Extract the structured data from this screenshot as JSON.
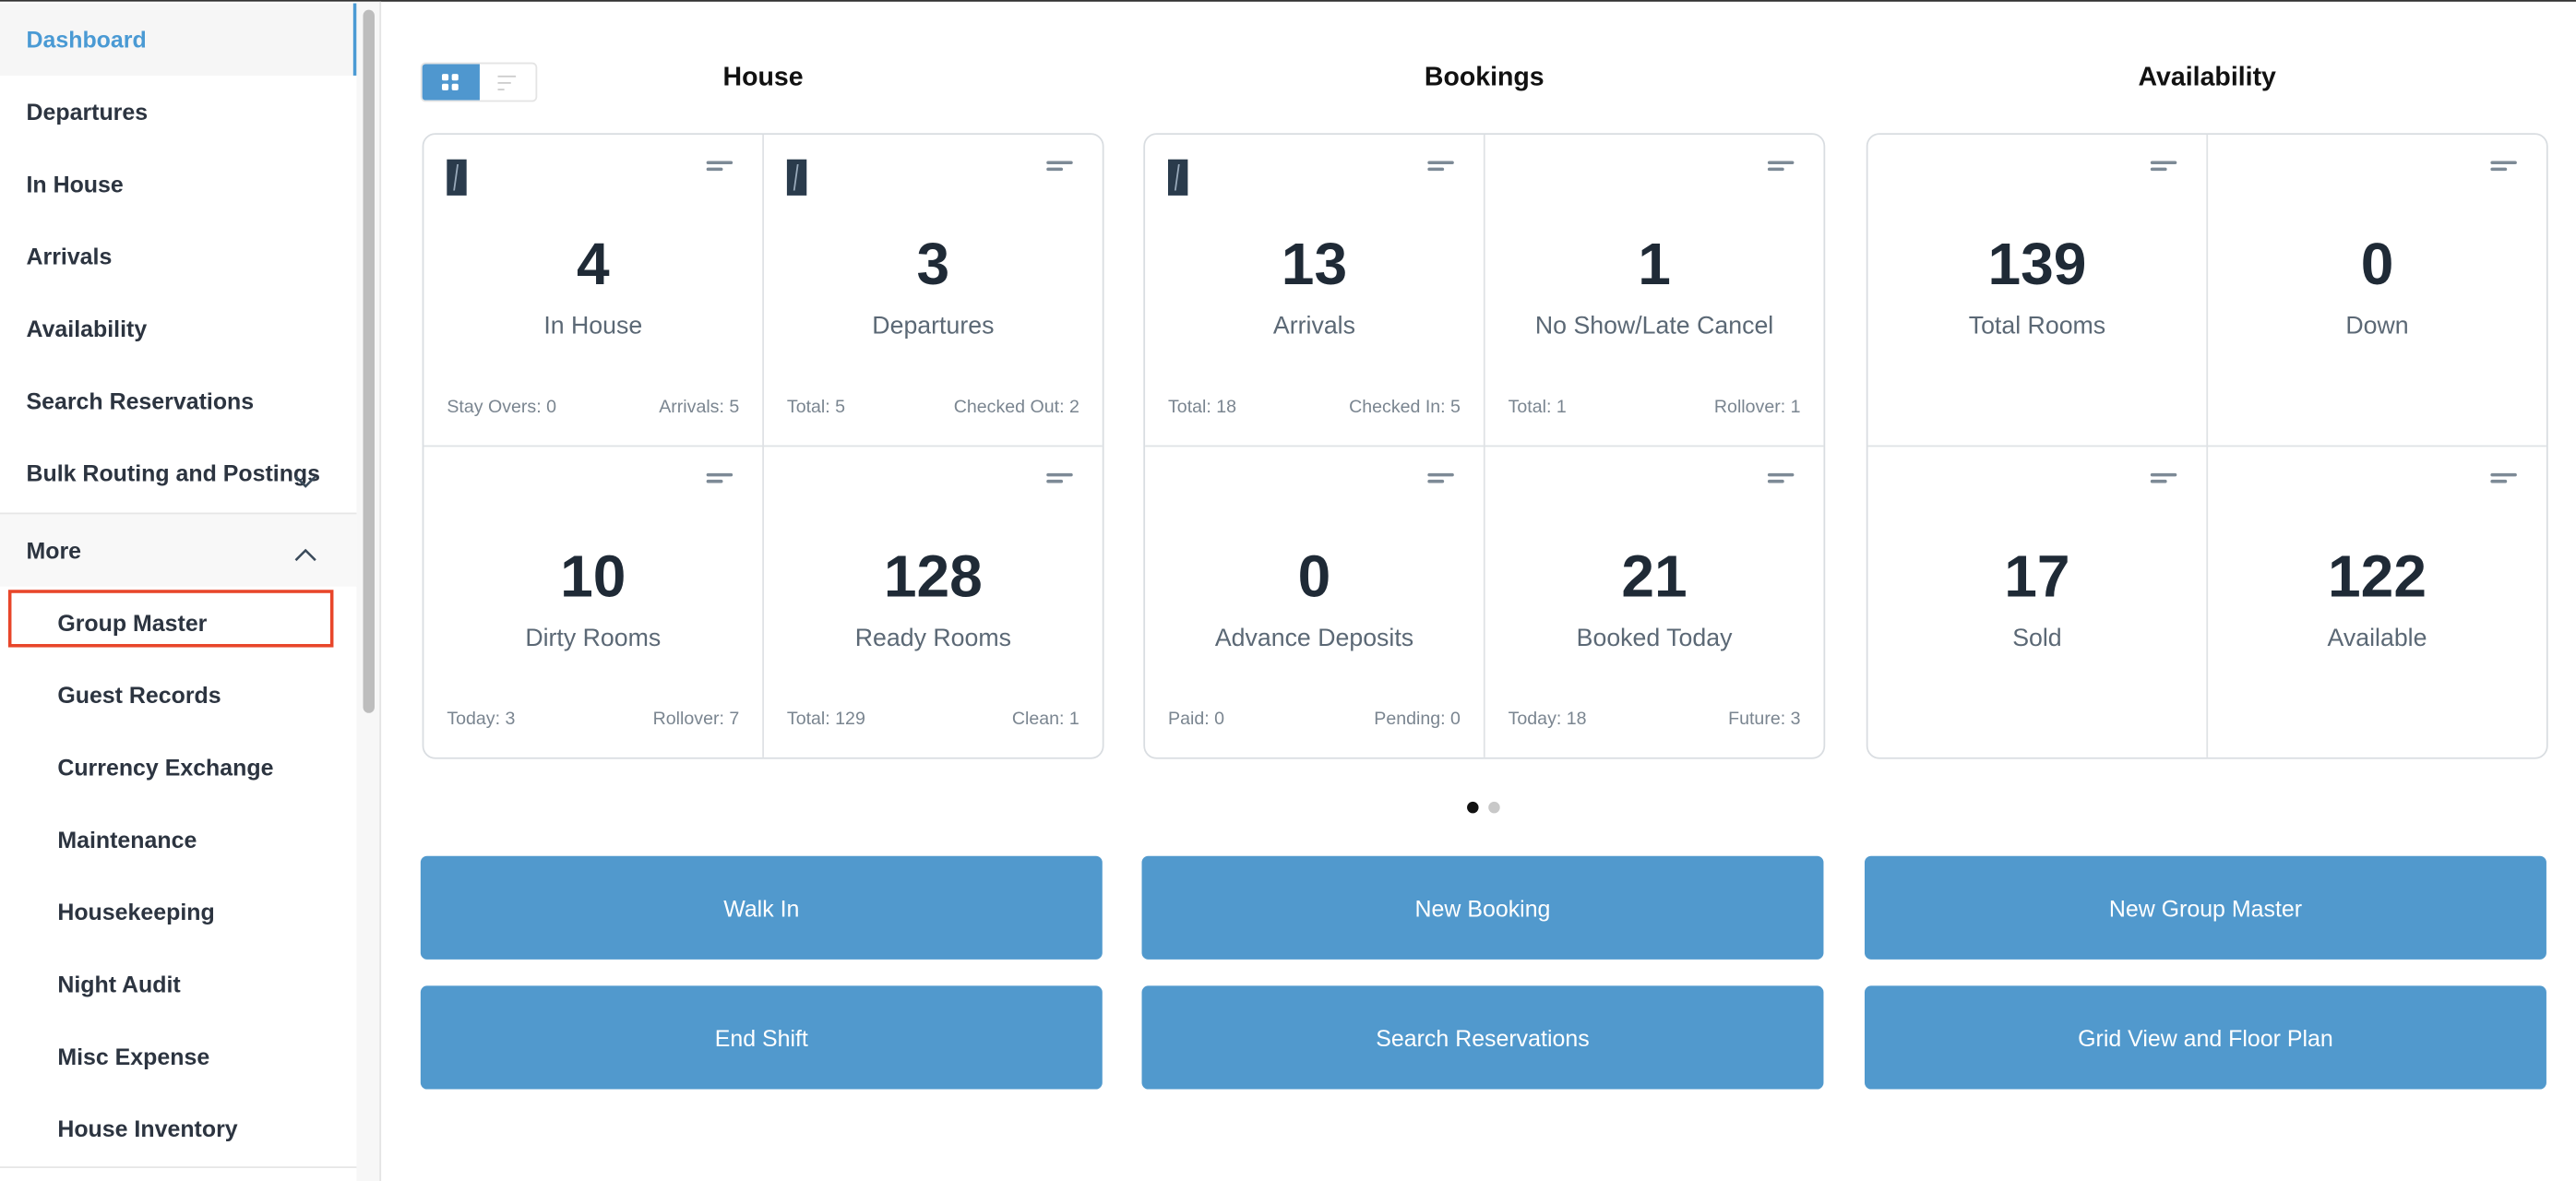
{
  "sidebar": {
    "items": [
      {
        "label": "Dashboard",
        "active": true
      },
      {
        "label": "Departures"
      },
      {
        "label": "In House"
      },
      {
        "label": "Arrivals"
      },
      {
        "label": "Availability"
      },
      {
        "label": "Search Reservations"
      },
      {
        "label": "Bulk Routing and Postings",
        "expandable": true,
        "expanded": false
      },
      {
        "label": "More",
        "expandable": true,
        "expanded": true
      }
    ],
    "sub_items": [
      {
        "label": "Group Master",
        "highlighted": true
      },
      {
        "label": "Guest Records"
      },
      {
        "label": "Currency Exchange"
      },
      {
        "label": "Maintenance"
      },
      {
        "label": "Housekeeping"
      },
      {
        "label": "Night Audit"
      },
      {
        "label": "Misc Expense"
      },
      {
        "label": "House Inventory"
      }
    ],
    "active_color": "#4a9ad4",
    "highlight_color": "#e8462a"
  },
  "view_toggle": {
    "selected": "grid",
    "options": [
      "grid-icon",
      "list-icon"
    ]
  },
  "sections": [
    {
      "title": "House",
      "cards": [
        {
          "value": "4",
          "label": "In House",
          "left": "Stay Overs: 0",
          "right": "Arrivals: 5",
          "logo": true
        },
        {
          "value": "3",
          "label": "Departures",
          "left": "Total: 5",
          "right": "Checked Out: 2",
          "logo": true
        },
        {
          "value": "10",
          "label": "Dirty Rooms",
          "left": "Today: 3",
          "right": "Rollover: 7"
        },
        {
          "value": "128",
          "label": "Ready Rooms",
          "left": "Total: 129",
          "right": "Clean: 1"
        }
      ]
    },
    {
      "title": "Bookings",
      "cards": [
        {
          "value": "13",
          "label": "Arrivals",
          "left": "Total: 18",
          "right": "Checked In: 5",
          "logo": true
        },
        {
          "value": "1",
          "label": "No Show/Late Cancel",
          "left": "Total: 1",
          "right": "Rollover: 1"
        },
        {
          "value": "0",
          "label": "Advance Deposits",
          "left": "Paid: 0",
          "right": "Pending: 0"
        },
        {
          "value": "21",
          "label": "Booked Today",
          "left": "Today: 18",
          "right": "Future: 3"
        }
      ]
    },
    {
      "title": "Availability",
      "cards": [
        {
          "value": "139",
          "label": "Total Rooms"
        },
        {
          "value": "0",
          "label": "Down"
        },
        {
          "value": "17",
          "label": "Sold"
        },
        {
          "value": "122",
          "label": "Available"
        }
      ]
    }
  ],
  "pager": {
    "pages": 2,
    "current": 1
  },
  "actions": [
    [
      "Walk In",
      "New Booking",
      "New Group Master"
    ],
    [
      "End Shift",
      "Search Reservations",
      "Grid View and Floor Plan"
    ]
  ],
  "button_color": "#5199cd"
}
